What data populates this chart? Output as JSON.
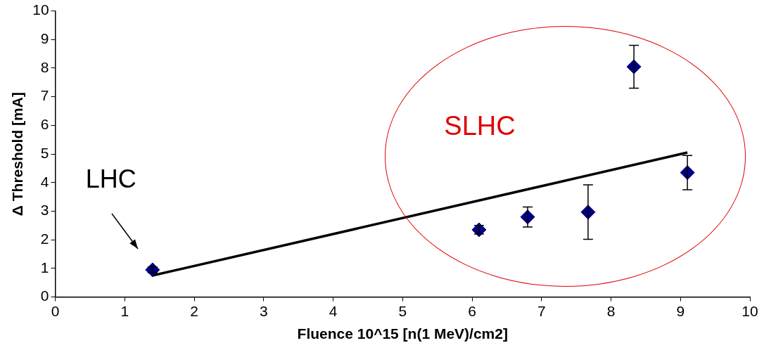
{
  "chart_data": {
    "type": "scatter",
    "xlabel": "Fluence 10^15 [n(1 MeV)/cm2]",
    "ylabel": "Δ Threshold [mA]",
    "xlim": [
      0,
      10
    ],
    "xticks": [
      0,
      1,
      2,
      3,
      4,
      5,
      6,
      7,
      8,
      9,
      10
    ],
    "ylim": [
      0,
      10
    ],
    "yticks": [
      0,
      1,
      2,
      3,
      4,
      5,
      6,
      7,
      8,
      9,
      10
    ],
    "legend": false,
    "grid": false,
    "series": [
      {
        "color": "#000080",
        "marker": "diamond",
        "x": [
          1.4,
          6.1,
          6.8,
          7.67,
          8.33,
          9.1
        ],
        "values": [
          0.95,
          2.35,
          2.8,
          2.97,
          8.05,
          4.35
        ],
        "errors": [
          0.1,
          0.15,
          0.35,
          0.95,
          0.75,
          0.6
        ]
      },
      {
        "type": "line",
        "color": "#000000",
        "marker": "none",
        "line_style": "solid",
        "x": [
          1.4,
          9.1
        ],
        "values": [
          0.75,
          5.05
        ]
      }
    ],
    "annotations": [
      "LHC",
      "SLHC"
    ]
  }
}
